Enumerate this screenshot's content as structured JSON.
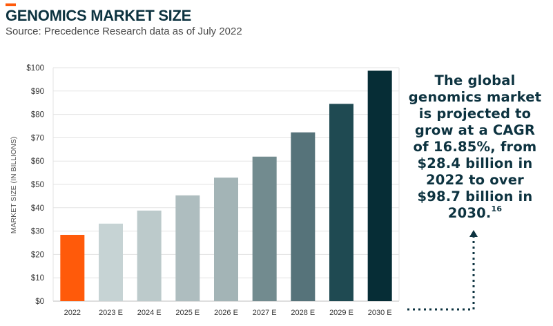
{
  "header": {
    "title": "GENOMICS MARKET SIZE",
    "subtitle": "Source: Precedence Research data as of July 2022"
  },
  "callout": {
    "text": "The global genomics market is projected to grow at a CAGR of 16.85%, from $28.4 billion in 2022 to over $98.7 billion in 2030.",
    "footnote": "16"
  },
  "colors": {
    "accent": "#ff5a0a",
    "title": "#0d3340",
    "grid": "#e3e3e3",
    "bars": [
      "#ff5a0a",
      "#c6d3d4",
      "#bccacb",
      "#aebdbf",
      "#a3b4b6",
      "#728b8f",
      "#56737a",
      "#1f4a52",
      "#062d36"
    ]
  },
  "chart_data": {
    "type": "bar",
    "categories": [
      "2022",
      "2023 E",
      "2024 E",
      "2025 E",
      "2026 E",
      "2027 E",
      "2028 E",
      "2029 E",
      "2030 E"
    ],
    "values": [
      28.4,
      33.2,
      38.8,
      45.3,
      52.9,
      61.9,
      72.3,
      84.5,
      98.7
    ],
    "ylabel": "MARKET SIZE (IN BILLIONS)",
    "ylim": [
      0,
      100
    ],
    "yticks": [
      0,
      10,
      20,
      30,
      40,
      50,
      60,
      70,
      80,
      90,
      100
    ],
    "ytick_labels": [
      "$0",
      "$10",
      "$20",
      "$30",
      "$40",
      "$50",
      "$60",
      "$70",
      "$80",
      "$90",
      "$100"
    ],
    "grid": true,
    "legend": "none"
  }
}
